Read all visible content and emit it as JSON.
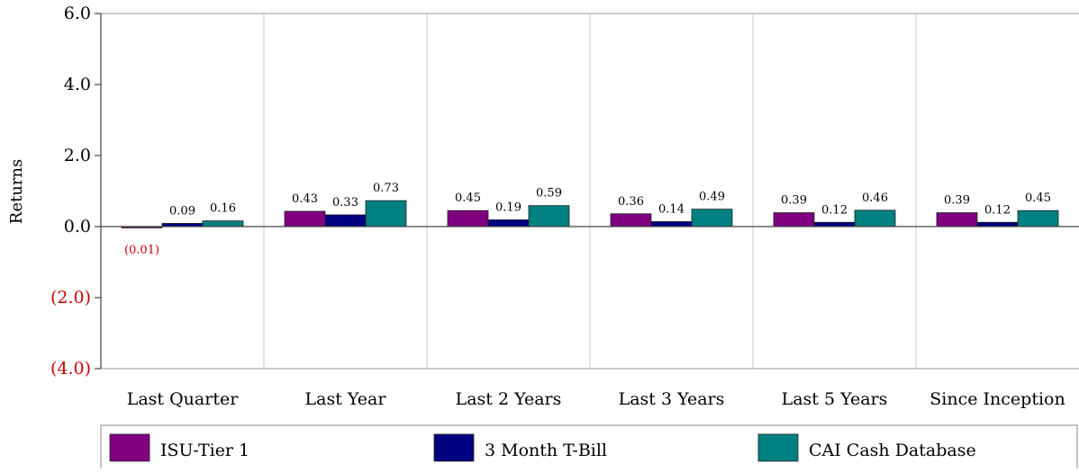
{
  "chart_data": {
    "type": "bar",
    "ylabel": "Returns",
    "ylim": [
      -4.0,
      6.0
    ],
    "yticks": [
      6.0,
      4.0,
      2.0,
      0.0,
      -2.0,
      -4.0
    ],
    "ytick_labels": [
      "6.0",
      "4.0",
      "2.0",
      "0.0",
      "(2.0)",
      "(4.0)"
    ],
    "categories": [
      "Last Quarter",
      "Last Year",
      "Last 2 Years",
      "Last 3 Years",
      "Last 5 Years",
      "Since Inception"
    ],
    "series": [
      {
        "name": "ISU-Tier 1",
        "color": "#800080",
        "values": [
          -0.01,
          0.43,
          0.45,
          0.36,
          0.39,
          0.39
        ],
        "labels": [
          "(0.01)",
          "0.43",
          "0.45",
          "0.36",
          "0.39",
          "0.39"
        ]
      },
      {
        "name": "3 Month T-Bill",
        "color": "#000080",
        "values": [
          0.09,
          0.33,
          0.19,
          0.14,
          0.12,
          0.12
        ],
        "labels": [
          "0.09",
          "0.33",
          "0.19",
          "0.14",
          "0.12",
          "0.12"
        ]
      },
      {
        "name": "CAI Cash Database",
        "color": "#008080",
        "values": [
          0.16,
          0.73,
          0.59,
          0.49,
          0.46,
          0.45
        ],
        "labels": [
          "0.16",
          "0.73",
          "0.59",
          "0.49",
          "0.46",
          "0.45"
        ]
      }
    ],
    "negative_label_color": "#cc0000",
    "grid": "vertical",
    "legend_position": "bottom"
  }
}
